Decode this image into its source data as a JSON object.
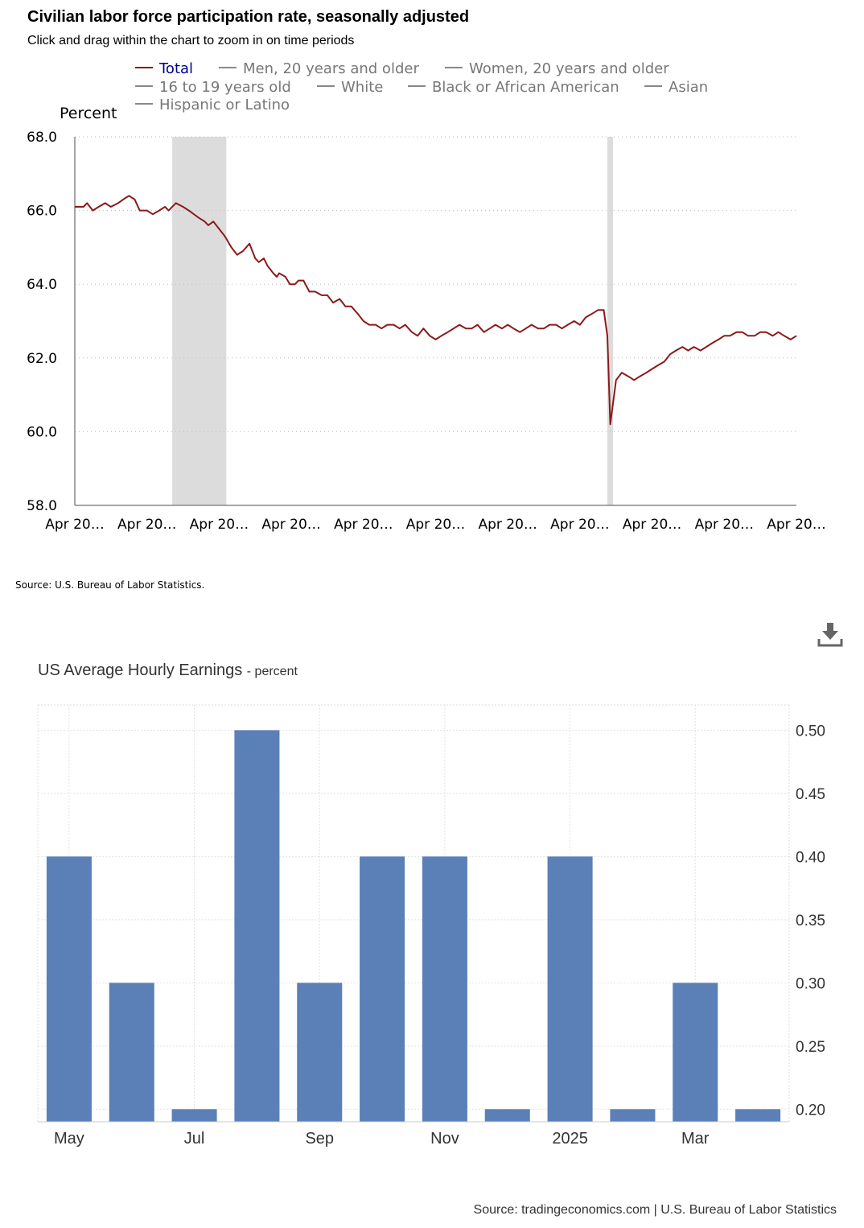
{
  "chart1": {
    "title": "Civilian labor force participation rate, seasonally adjusted",
    "subtitle": "Click and drag within the chart to zoom in on time periods",
    "legend": [
      {
        "label": "Total",
        "active": true
      },
      {
        "label": "Men, 20 years and older",
        "active": false
      },
      {
        "label": "Women, 20 years and older",
        "active": false
      },
      {
        "label": "16 to 19 years old",
        "active": false
      },
      {
        "label": "White",
        "active": false
      },
      {
        "label": "Black or African American",
        "active": false
      },
      {
        "label": "Asian",
        "active": false
      },
      {
        "label": "Hispanic or Latino",
        "active": false
      }
    ],
    "source": "Source: U.S. Bureau of Labor Statistics."
  },
  "chart2": {
    "title": "US Average Hourly Earnings",
    "unit": "- percent",
    "source": "Source: tradingeconomics.com | U.S. Bureau of Labor Statistics",
    "download_icon": "download-icon"
  },
  "chart_data": [
    {
      "type": "line",
      "title": "Civilian labor force participation rate, seasonally adjusted",
      "ylabel": "Percent",
      "ylim": [
        58.0,
        68.0
      ],
      "yticks": [
        "58.0",
        "60.0",
        "62.0",
        "64.0",
        "66.0",
        "68.0"
      ],
      "xtick_labels": [
        "Apr 20…",
        "Apr 20…",
        "Apr 20…",
        "Apr 20…",
        "Apr 20…",
        "Apr 20…",
        "Apr 20…",
        "Apr 20…",
        "Apr 20…",
        "Apr 20…",
        "Apr 20…"
      ],
      "x_range_years": [
        0,
        10
      ],
      "recession_bands_years": [
        [
          1.35,
          2.1
        ],
        [
          7.38,
          7.46
        ]
      ],
      "grid": true,
      "series": [
        {
          "name": "Total",
          "color": "#8b1a1a",
          "x_years": [
            0.0,
            0.12,
            0.17,
            0.25,
            0.33,
            0.42,
            0.5,
            0.6,
            0.67,
            0.75,
            0.83,
            0.9,
            1.0,
            1.08,
            1.17,
            1.25,
            1.3,
            1.4,
            1.5,
            1.58,
            1.65,
            1.72,
            1.8,
            1.85,
            1.92,
            2.0,
            2.08,
            2.17,
            2.25,
            2.33,
            2.42,
            2.5,
            2.55,
            2.62,
            2.67,
            2.75,
            2.8,
            2.83,
            2.92,
            2.98,
            3.05,
            3.1,
            3.17,
            3.25,
            3.33,
            3.42,
            3.5,
            3.58,
            3.67,
            3.75,
            3.83,
            3.92,
            4.0,
            4.08,
            4.17,
            4.25,
            4.33,
            4.42,
            4.5,
            4.58,
            4.67,
            4.75,
            4.83,
            4.92,
            5.0,
            5.08,
            5.17,
            5.25,
            5.33,
            5.42,
            5.5,
            5.58,
            5.67,
            5.75,
            5.83,
            5.92,
            6.0,
            6.08,
            6.17,
            6.25,
            6.33,
            6.42,
            6.5,
            6.58,
            6.67,
            6.75,
            6.83,
            6.92,
            7.0,
            7.08,
            7.17,
            7.25,
            7.33,
            7.38,
            7.42,
            7.5,
            7.58,
            7.67,
            7.75,
            7.83,
            7.92,
            8.0,
            8.08,
            8.17,
            8.25,
            8.33,
            8.42,
            8.5,
            8.58,
            8.67,
            8.75,
            8.83,
            8.92,
            9.0,
            9.08,
            9.17,
            9.25,
            9.33,
            9.42,
            9.5,
            9.58,
            9.67,
            9.75,
            9.83,
            9.92,
            10.0
          ],
          "y": [
            66.1,
            66.1,
            66.2,
            66.0,
            66.1,
            66.2,
            66.1,
            66.2,
            66.3,
            66.4,
            66.3,
            66.0,
            66.0,
            65.9,
            66.0,
            66.1,
            66.0,
            66.2,
            66.1,
            66.0,
            65.9,
            65.8,
            65.7,
            65.6,
            65.7,
            65.5,
            65.3,
            65.0,
            64.8,
            64.9,
            65.1,
            64.7,
            64.6,
            64.7,
            64.5,
            64.3,
            64.2,
            64.3,
            64.2,
            64.0,
            64.0,
            64.1,
            64.1,
            63.8,
            63.8,
            63.7,
            63.7,
            63.5,
            63.6,
            63.4,
            63.4,
            63.2,
            63.0,
            62.9,
            62.9,
            62.8,
            62.9,
            62.9,
            62.8,
            62.9,
            62.7,
            62.6,
            62.8,
            62.6,
            62.5,
            62.6,
            62.7,
            62.8,
            62.9,
            62.8,
            62.8,
            62.9,
            62.7,
            62.8,
            62.9,
            62.8,
            62.9,
            62.8,
            62.7,
            62.8,
            62.9,
            62.8,
            62.8,
            62.9,
            62.9,
            62.8,
            62.9,
            63.0,
            62.9,
            63.1,
            63.2,
            63.3,
            63.3,
            62.6,
            60.2,
            61.4,
            61.6,
            61.5,
            61.4,
            61.5,
            61.6,
            61.7,
            61.8,
            61.9,
            62.1,
            62.2,
            62.3,
            62.2,
            62.3,
            62.2,
            62.3,
            62.4,
            62.5,
            62.6,
            62.6,
            62.7,
            62.7,
            62.6,
            62.6,
            62.7,
            62.7,
            62.6,
            62.7,
            62.6,
            62.5,
            62.6
          ]
        }
      ]
    },
    {
      "type": "bar",
      "title": "US Average Hourly Earnings",
      "ylabel": "percent",
      "categories": [
        "May",
        "",
        "Jul",
        "",
        "Sep",
        "",
        "Nov",
        "",
        "2025",
        "",
        "Mar",
        ""
      ],
      "series": [
        {
          "color": "#5b80b8",
          "values": [
            0.4,
            0.3,
            0.2,
            0.5,
            0.3,
            0.4,
            0.4,
            0.2,
            0.4,
            0.2,
            0.3,
            0.2
          ]
        }
      ],
      "ylim": [
        0.19,
        0.52
      ],
      "yticks": [
        "0.20",
        "0.25",
        "0.30",
        "0.35",
        "0.40",
        "0.45",
        "0.50"
      ],
      "grid": true,
      "yaxis_position": "right"
    }
  ]
}
